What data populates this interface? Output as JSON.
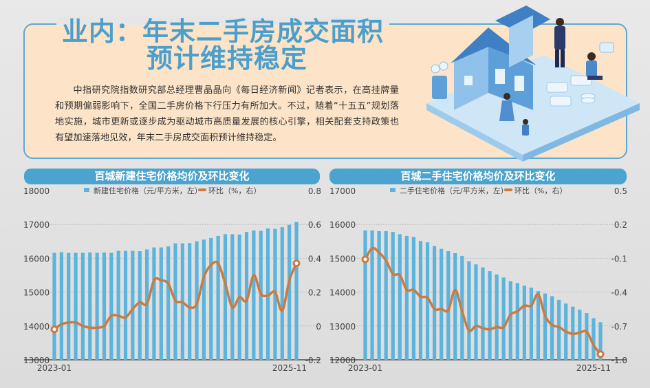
{
  "header": {
    "title_line1": "业内：年末二手房成交面积",
    "title_line2": "预计维持稳定"
  },
  "body_text": "中指研究院指数研究部总经理曹晶晶向《每日经济新闻》记者表示，在高挂牌量和预期偏弱影响下，全国二手房价格下行压力有所加大。不过，随着“十五五”规划落地实施，城市更新或逐步成为驱动城市高质量发展的核心引擎，相关配套支持政策也有望加速落地见效，年末二手房成交面积预计维持稳定。",
  "colors": {
    "bar": "#5ab4dd",
    "line": "#c97b42",
    "title_bar": "#4ba3cf",
    "headline": "#4a9fcc",
    "panel": "#fde4c8"
  },
  "chart_data": [
    {
      "type": "bar+line",
      "title": "百城新建住宅价格均价及环比变化",
      "x_start_label": "2023-01",
      "x_end_label": "2025-11",
      "legend": [
        "新建住宅价格（元/平方米，左）",
        "环比（%，右）"
      ],
      "legend_position": "top",
      "ylim_left": [
        13000,
        18000
      ],
      "yticks_left": [
        "18000",
        "17000",
        "16000",
        "15000",
        "14000",
        "13000"
      ],
      "ylim_right": [
        -0.2,
        0.8
      ],
      "yticks_right": [
        "0.8",
        "0.6",
        "0.4",
        "0.2",
        "0",
        "-0.2"
      ],
      "grid": true,
      "series": [
        {
          "name": "新建住宅价格（元/平方米，左）",
          "type": "bar",
          "axis": "left",
          "values": [
            16160,
            16180,
            16160,
            16160,
            16160,
            16170,
            16160,
            16170,
            16160,
            16220,
            16220,
            16220,
            16210,
            16260,
            16320,
            16320,
            16350,
            16440,
            16440,
            16450,
            16500,
            16550,
            16600,
            16660,
            16710,
            16710,
            16700,
            16780,
            16820,
            16810,
            16880,
            16870,
            16920,
            16990,
            17070
          ]
        },
        {
          "name": "环比（%，右）",
          "type": "line",
          "axis": "right",
          "values": [
            -0.02,
            0.01,
            0.02,
            0.02,
            0.0,
            -0.01,
            -0.01,
            0.0,
            0.06,
            0.06,
            0.05,
            0.1,
            0.14,
            0.13,
            0.27,
            0.27,
            0.25,
            0.15,
            0.14,
            0.11,
            0.13,
            0.29,
            0.36,
            0.37,
            0.25,
            0.11,
            0.17,
            0.15,
            0.3,
            0.19,
            0.18,
            0.2,
            0.09,
            0.27,
            0.37
          ]
        }
      ]
    },
    {
      "type": "bar+line",
      "title": "百城二手住宅价格均价及环比变化",
      "x_start_label": "2023-01",
      "x_end_label": "2025-11",
      "legend": [
        "二手住宅价格（元/平方米，左）",
        "环比（%，右）"
      ],
      "legend_position": "top",
      "ylim_left": [
        12000,
        17000
      ],
      "yticks_left": [
        "17000",
        "16000",
        "15000",
        "14000",
        "13000",
        "12000"
      ],
      "ylim_right": [
        -1.0,
        0.5
      ],
      "yticks_right": [
        "0.5",
        "0.2",
        "-0.1",
        "-0.4",
        "-0.7",
        "-1.0"
      ],
      "grid": true,
      "series": [
        {
          "name": "二手住宅价格（元/平方米，左）",
          "type": "bar",
          "axis": "left",
          "values": [
            15820,
            15820,
            15800,
            15800,
            15780,
            15710,
            15660,
            15630,
            15510,
            15470,
            15360,
            15280,
            15210,
            15150,
            15070,
            14910,
            14820,
            14730,
            14620,
            14520,
            14430,
            14320,
            14270,
            14190,
            14130,
            14030,
            13960,
            13880,
            13770,
            13660,
            13570,
            13480,
            13380,
            13230,
            13110
          ]
        },
        {
          "name": "环比（%，右）",
          "type": "line",
          "axis": "right",
          "values": [
            -0.11,
            -0.01,
            -0.05,
            -0.12,
            -0.24,
            -0.25,
            -0.38,
            -0.38,
            -0.44,
            -0.45,
            -0.55,
            -0.55,
            -0.56,
            -0.38,
            -0.57,
            -0.74,
            -0.7,
            -0.72,
            -0.73,
            -0.71,
            -0.71,
            -0.6,
            -0.57,
            -0.52,
            -0.52,
            -0.42,
            -0.61,
            -0.69,
            -0.71,
            -0.75,
            -0.77,
            -0.76,
            -0.75,
            -0.87,
            -0.95
          ]
        }
      ]
    }
  ]
}
